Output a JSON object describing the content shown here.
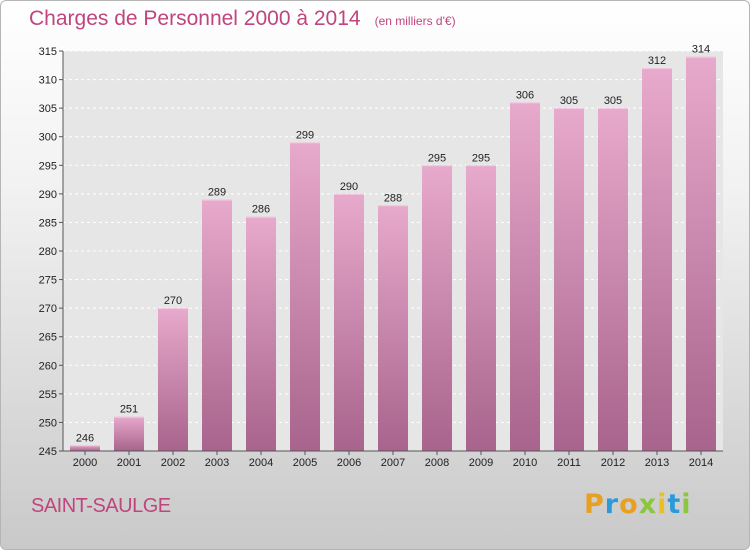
{
  "chart_data": {
    "type": "bar",
    "title": "Charges de Personnel 2000 à 2014",
    "subtitle": "(en milliers d'€)",
    "categories": [
      "2000",
      "2001",
      "2002",
      "2003",
      "2004",
      "2005",
      "2006",
      "2007",
      "2008",
      "2009",
      "2010",
      "2011",
      "2012",
      "2013",
      "2014"
    ],
    "values": [
      246,
      251,
      270,
      289,
      286,
      299,
      290,
      288,
      295,
      295,
      306,
      305,
      305,
      312,
      314
    ],
    "ylim": [
      245,
      315
    ],
    "yticks": [
      245,
      250,
      255,
      260,
      265,
      270,
      275,
      280,
      285,
      290,
      295,
      300,
      305,
      310,
      315
    ],
    "grid": true,
    "bar_color": "#d98ab7"
  },
  "footer": {
    "commune": "SAINT-SAULGE",
    "logo_letters": [
      "P",
      "r",
      "o",
      "x",
      "i",
      "t",
      "i"
    ],
    "logo_colors": [
      "#e8a020",
      "#2a9ad8",
      "#e8a020",
      "#8cc63f",
      "#e8c020",
      "#2a9ad8",
      "#8cc63f"
    ]
  }
}
